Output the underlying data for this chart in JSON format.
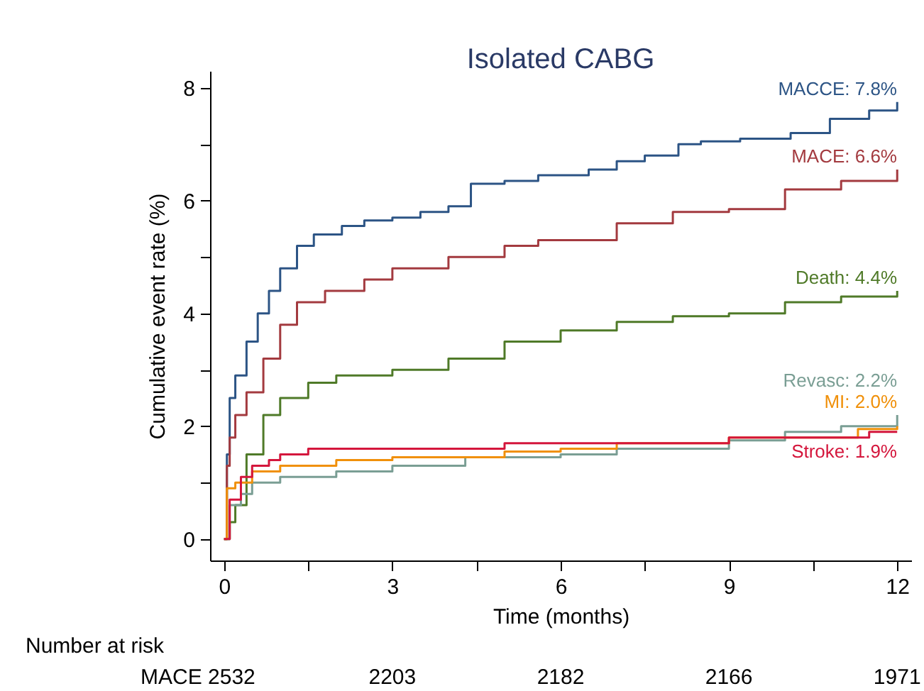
{
  "chart_data": {
    "type": "step",
    "title": "Isolated CABG",
    "xlabel": "Time (months)",
    "ylabel": "Cumulative event rate (%)",
    "xlim": [
      -0.25,
      12.25
    ],
    "ylim": [
      -0.38,
      8.3
    ],
    "xticks": [
      0,
      {
        "value": 1.5,
        "label": null
      },
      3,
      {
        "value": 4.5,
        "label": null
      },
      6,
      {
        "value": 7.5,
        "label": null
      },
      9,
      {
        "value": 10.5,
        "label": null
      },
      12
    ],
    "yticks": [
      0,
      {
        "value": 1,
        "label": null
      },
      2,
      {
        "value": 3,
        "label": null
      },
      4,
      {
        "value": 5,
        "label": null
      },
      6,
      {
        "value": 7,
        "label": null
      },
      8
    ],
    "grid": false,
    "legend": false,
    "line_style": "solid",
    "marker": "none",
    "series": [
      {
        "color": "#2c5485",
        "x": [
          0,
          0.05,
          0.1,
          0.2,
          0.4,
          0.6,
          0.8,
          1.0,
          1.3,
          1.6,
          2.1,
          2.5,
          3.0,
          3.5,
          4.0,
          4.4,
          5.0,
          5.6,
          6.5,
          7.0,
          7.5,
          8.1,
          8.5,
          9.2,
          10.1,
          10.8,
          11.5,
          12
        ],
        "values": [
          0,
          1.5,
          2.5,
          2.9,
          3.5,
          4.0,
          4.4,
          4.8,
          5.2,
          5.4,
          5.55,
          5.65,
          5.7,
          5.8,
          5.9,
          6.3,
          6.35,
          6.45,
          6.55,
          6.7,
          6.8,
          7.0,
          7.05,
          7.1,
          7.2,
          7.45,
          7.6,
          7.75
        ]
      },
      {
        "color": "#a33a3f",
        "x": [
          0,
          0.05,
          0.1,
          0.2,
          0.4,
          0.7,
          1.0,
          1.3,
          1.8,
          2.5,
          3.0,
          4.0,
          5.0,
          5.6,
          7.0,
          8.0,
          9.0,
          10.0,
          11.0,
          12
        ],
        "values": [
          0,
          1.3,
          1.8,
          2.2,
          2.6,
          3.2,
          3.8,
          4.2,
          4.4,
          4.6,
          4.8,
          5.0,
          5.2,
          5.3,
          5.6,
          5.8,
          5.85,
          6.2,
          6.35,
          6.55
        ]
      },
      {
        "color": "#4f7a28",
        "x": [
          0,
          0.1,
          0.2,
          0.4,
          0.7,
          1.0,
          1.5,
          2.0,
          3.0,
          4.0,
          5.0,
          6.0,
          7.0,
          8.0,
          9.0,
          10.0,
          11.0,
          12
        ],
        "values": [
          0,
          0.3,
          0.6,
          1.5,
          2.2,
          2.5,
          2.77,
          2.9,
          3.0,
          3.2,
          3.5,
          3.7,
          3.85,
          3.95,
          4.0,
          4.2,
          4.3,
          4.4
        ]
      },
      {
        "color": "#7a9e94",
        "x": [
          0,
          0.1,
          0.3,
          0.5,
          1.0,
          2.0,
          3.0,
          4.3,
          6.0,
          7.0,
          9.0,
          10.0,
          11.0,
          12
        ],
        "values": [
          0,
          0.6,
          0.8,
          1.0,
          1.1,
          1.2,
          1.3,
          1.45,
          1.5,
          1.6,
          1.75,
          1.9,
          2.0,
          2.2
        ]
      },
      {
        "color": "#f0900a",
        "x": [
          0,
          0.05,
          0.2,
          0.5,
          1.0,
          2.0,
          3.0,
          5.0,
          6.0,
          7.0,
          9.0,
          11.3,
          12
        ],
        "values": [
          0,
          0.9,
          1.0,
          1.2,
          1.3,
          1.4,
          1.45,
          1.55,
          1.6,
          1.7,
          1.8,
          1.95,
          2.0
        ]
      },
      {
        "color": "#d4163c",
        "x": [
          0,
          0.1,
          0.3,
          0.5,
          0.8,
          1.0,
          1.5,
          5.0,
          9.0,
          11.5,
          12
        ],
        "values": [
          0,
          0.7,
          1.1,
          1.3,
          1.4,
          1.5,
          1.6,
          1.7,
          1.8,
          1.9,
          1.9
        ]
      }
    ],
    "annotations": [
      "MACCE: 7.8%",
      "MACE: 6.6%",
      "Death: 4.4%",
      "Revasc: 2.2%",
      "MI: 2.0%",
      "Stroke: 1.9%",
      "Number at risk",
      "MACE 2532",
      "2203",
      "2182",
      "2166",
      "1971"
    ]
  }
}
